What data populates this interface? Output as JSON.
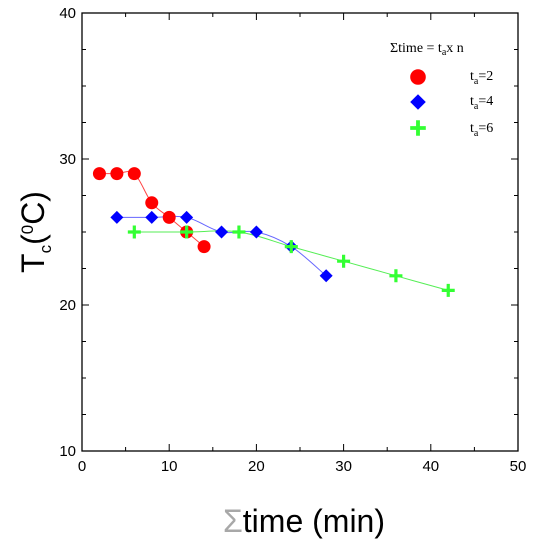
{
  "chart_data": {
    "type": "scatter",
    "title": "",
    "xlim": [
      0,
      50
    ],
    "ylim": [
      10,
      40
    ],
    "x_ticks": [
      0,
      10,
      20,
      30,
      40,
      50
    ],
    "y_ticks": [
      10,
      20,
      30,
      40
    ],
    "x_tick_labels": [
      "0",
      "10",
      "20",
      "30",
      "40",
      "50"
    ],
    "y_tick_labels": [
      "10",
      "20",
      "30",
      "40"
    ],
    "xlabel": {
      "sigma": "Σ",
      "text": "time (min)"
    },
    "ylabel": {
      "base": "T",
      "sub": "c",
      "open": "(",
      "sup": "0",
      "unit": "C)"
    },
    "grid": false,
    "legend": {
      "placement": "top-right",
      "title": {
        "sigma": "Σ",
        "text": "time = t",
        "sub": "a",
        "tail": "x n"
      },
      "entries": [
        {
          "base": "t",
          "sub": "a",
          "tail": "=2"
        },
        {
          "base": "t",
          "sub": "a",
          "tail": "=4"
        },
        {
          "base": "t",
          "sub": "a",
          "tail": "=6"
        }
      ]
    },
    "series": [
      {
        "marker": "circle",
        "color": "#ff0000",
        "x": [
          2,
          4,
          6,
          8,
          10,
          12,
          14
        ],
        "y": [
          29,
          29,
          29,
          27,
          26,
          25,
          24
        ]
      },
      {
        "marker": "diamond",
        "color": "#0000ff",
        "x": [
          4,
          8,
          12,
          16,
          20,
          24,
          28
        ],
        "y": [
          26,
          26,
          26,
          25,
          25,
          24,
          22
        ]
      },
      {
        "marker": "plus",
        "color": "#33ff33",
        "x": [
          6,
          12,
          18,
          24,
          30,
          36,
          42
        ],
        "y": [
          25,
          25,
          25,
          24,
          23,
          22,
          21
        ]
      }
    ]
  }
}
